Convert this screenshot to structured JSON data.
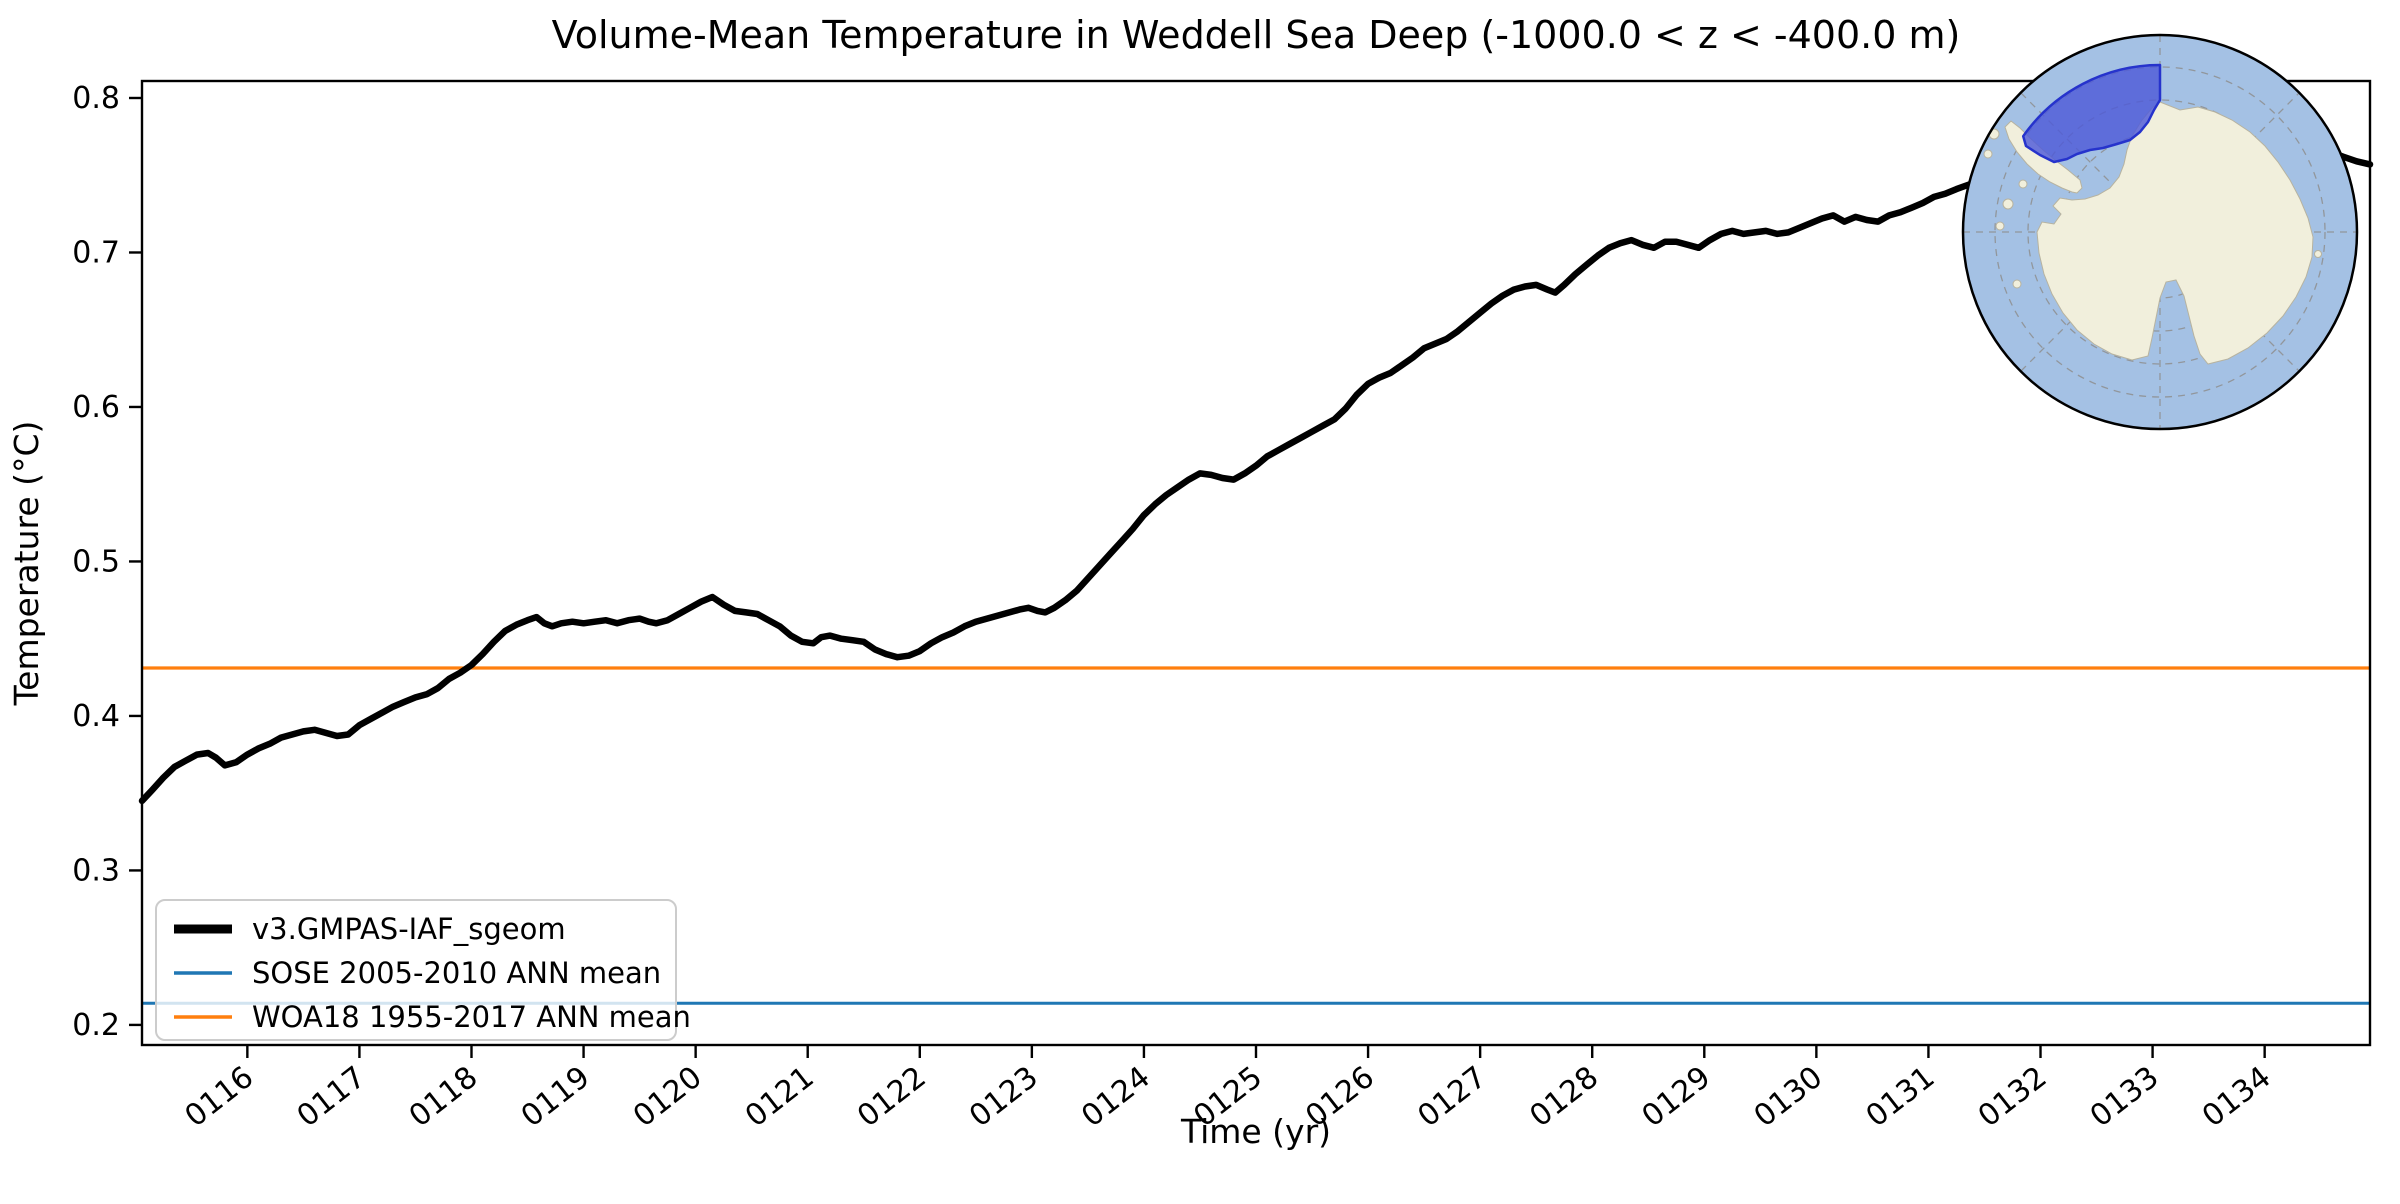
{
  "title": "Volume-Mean Temperature in Weddell Sea Deep (-1000.0 < z < -400.0 m)",
  "axes": {
    "xlabel": "Time (yr)",
    "ylabel": "Temperature (°C)"
  },
  "legend": {
    "items": [
      {
        "label": "v3.GMPAS-IAF_sgeom",
        "color": "#000000",
        "line_width": 9
      },
      {
        "label": "SOSE 2005-2010 ANN mean",
        "color": "#1f77b4",
        "line_width": 3.5
      },
      {
        "label": "WOA18 1955-2017 ANN mean",
        "color": "#ff7f0e",
        "line_width": 3.5
      }
    ]
  },
  "inset_map": {
    "description": "south-polar-stereographic-antarctica-inset",
    "highlight_region": "Weddell Sea sector",
    "ocean_color": "#a4c1e4",
    "land_color": "#f1efdc",
    "highlight_fill": "#4e5ad8",
    "highlight_edge": "#2633cc",
    "graticule_color": "#8f8f8f"
  },
  "chart_data": {
    "type": "line",
    "title": "Volume-Mean Temperature in Weddell Sea Deep (-1000.0 < z < -400.0 m)",
    "xlabel": "Time (yr)",
    "ylabel": "Temperature (°C)",
    "xlim": [
      115.06,
      134.94
    ],
    "ylim": [
      0.187,
      0.811
    ],
    "grid": false,
    "legend_position": "lower left",
    "x_ticks": [
      {
        "value": 116,
        "label": "0116"
      },
      {
        "value": 117,
        "label": "0117"
      },
      {
        "value": 118,
        "label": "0118"
      },
      {
        "value": 119,
        "label": "0119"
      },
      {
        "value": 120,
        "label": "0120"
      },
      {
        "value": 121,
        "label": "0121"
      },
      {
        "value": 122,
        "label": "0122"
      },
      {
        "value": 123,
        "label": "0123"
      },
      {
        "value": 124,
        "label": "0124"
      },
      {
        "value": 125,
        "label": "0125"
      },
      {
        "value": 126,
        "label": "0126"
      },
      {
        "value": 127,
        "label": "0127"
      },
      {
        "value": 128,
        "label": "0128"
      },
      {
        "value": 129,
        "label": "0129"
      },
      {
        "value": 130,
        "label": "0130"
      },
      {
        "value": 131,
        "label": "0131"
      },
      {
        "value": 132,
        "label": "0132"
      },
      {
        "value": 133,
        "label": "0133"
      },
      {
        "value": 134,
        "label": "0134"
      }
    ],
    "y_ticks": [
      {
        "value": 0.2,
        "label": "0.2"
      },
      {
        "value": 0.3,
        "label": "0.3"
      },
      {
        "value": 0.4,
        "label": "0.4"
      },
      {
        "value": 0.5,
        "label": "0.5"
      },
      {
        "value": 0.6,
        "label": "0.6"
      },
      {
        "value": 0.7,
        "label": "0.7"
      },
      {
        "value": 0.8,
        "label": "0.8"
      }
    ],
    "reference_lines": [
      {
        "name": "SOSE 2005-2010 ANN mean",
        "value": 0.214,
        "color": "#1f77b4",
        "width": 3
      },
      {
        "name": "WOA18 1955-2017 ANN mean",
        "value": 0.431,
        "color": "#ff7f0e",
        "width": 3.25
      }
    ],
    "series": [
      {
        "name": "v3.GMPAS-IAF_sgeom",
        "color": "#000000",
        "width": 6.5,
        "points": [
          [
            115.06,
            0.345
          ],
          [
            115.15,
            0.352
          ],
          [
            115.25,
            0.36
          ],
          [
            115.35,
            0.367
          ],
          [
            115.45,
            0.371
          ],
          [
            115.55,
            0.375
          ],
          [
            115.65,
            0.376
          ],
          [
            115.72,
            0.373
          ],
          [
            115.8,
            0.368
          ],
          [
            115.9,
            0.37
          ],
          [
            116.0,
            0.375
          ],
          [
            116.1,
            0.379
          ],
          [
            116.2,
            0.382
          ],
          [
            116.3,
            0.386
          ],
          [
            116.4,
            0.388
          ],
          [
            116.5,
            0.39
          ],
          [
            116.6,
            0.391
          ],
          [
            116.7,
            0.389
          ],
          [
            116.8,
            0.387
          ],
          [
            116.9,
            0.388
          ],
          [
            117.0,
            0.394
          ],
          [
            117.1,
            0.398
          ],
          [
            117.2,
            0.402
          ],
          [
            117.3,
            0.406
          ],
          [
            117.4,
            0.409
          ],
          [
            117.5,
            0.412
          ],
          [
            117.6,
            0.414
          ],
          [
            117.7,
            0.418
          ],
          [
            117.8,
            0.424
          ],
          [
            117.9,
            0.428
          ],
          [
            118.0,
            0.433
          ],
          [
            118.1,
            0.44
          ],
          [
            118.2,
            0.448
          ],
          [
            118.3,
            0.455
          ],
          [
            118.4,
            0.459
          ],
          [
            118.5,
            0.462
          ],
          [
            118.58,
            0.464
          ],
          [
            118.65,
            0.46
          ],
          [
            118.72,
            0.458
          ],
          [
            118.8,
            0.46
          ],
          [
            118.9,
            0.461
          ],
          [
            119.0,
            0.46
          ],
          [
            119.1,
            0.461
          ],
          [
            119.2,
            0.462
          ],
          [
            119.3,
            0.46
          ],
          [
            119.4,
            0.462
          ],
          [
            119.5,
            0.463
          ],
          [
            119.58,
            0.461
          ],
          [
            119.65,
            0.46
          ],
          [
            119.75,
            0.462
          ],
          [
            119.85,
            0.466
          ],
          [
            119.95,
            0.47
          ],
          [
            120.05,
            0.474
          ],
          [
            120.15,
            0.477
          ],
          [
            120.25,
            0.472
          ],
          [
            120.35,
            0.468
          ],
          [
            120.45,
            0.467
          ],
          [
            120.55,
            0.466
          ],
          [
            120.65,
            0.462
          ],
          [
            120.75,
            0.458
          ],
          [
            120.85,
            0.452
          ],
          [
            120.95,
            0.448
          ],
          [
            121.05,
            0.447
          ],
          [
            121.12,
            0.451
          ],
          [
            121.2,
            0.452
          ],
          [
            121.3,
            0.45
          ],
          [
            121.4,
            0.449
          ],
          [
            121.5,
            0.448
          ],
          [
            121.6,
            0.443
          ],
          [
            121.7,
            0.44
          ],
          [
            121.8,
            0.438
          ],
          [
            121.9,
            0.439
          ],
          [
            122.0,
            0.442
          ],
          [
            122.1,
            0.447
          ],
          [
            122.2,
            0.451
          ],
          [
            122.3,
            0.454
          ],
          [
            122.4,
            0.458
          ],
          [
            122.5,
            0.461
          ],
          [
            122.6,
            0.463
          ],
          [
            122.7,
            0.465
          ],
          [
            122.8,
            0.467
          ],
          [
            122.9,
            0.469
          ],
          [
            122.97,
            0.47
          ],
          [
            123.05,
            0.468
          ],
          [
            123.12,
            0.467
          ],
          [
            123.2,
            0.47
          ],
          [
            123.3,
            0.475
          ],
          [
            123.4,
            0.481
          ],
          [
            123.5,
            0.489
          ],
          [
            123.6,
            0.497
          ],
          [
            123.7,
            0.505
          ],
          [
            123.8,
            0.513
          ],
          [
            123.9,
            0.521
          ],
          [
            124.0,
            0.53
          ],
          [
            124.1,
            0.537
          ],
          [
            124.2,
            0.543
          ],
          [
            124.3,
            0.548
          ],
          [
            124.4,
            0.553
          ],
          [
            124.5,
            0.557
          ],
          [
            124.6,
            0.556
          ],
          [
            124.7,
            0.554
          ],
          [
            124.8,
            0.553
          ],
          [
            124.9,
            0.557
          ],
          [
            125.0,
            0.562
          ],
          [
            125.1,
            0.568
          ],
          [
            125.2,
            0.572
          ],
          [
            125.3,
            0.576
          ],
          [
            125.4,
            0.58
          ],
          [
            125.5,
            0.584
          ],
          [
            125.6,
            0.588
          ],
          [
            125.7,
            0.592
          ],
          [
            125.8,
            0.599
          ],
          [
            125.9,
            0.608
          ],
          [
            126.0,
            0.615
          ],
          [
            126.1,
            0.619
          ],
          [
            126.2,
            0.622
          ],
          [
            126.3,
            0.627
          ],
          [
            126.4,
            0.632
          ],
          [
            126.5,
            0.638
          ],
          [
            126.6,
            0.641
          ],
          [
            126.7,
            0.644
          ],
          [
            126.8,
            0.649
          ],
          [
            126.9,
            0.655
          ],
          [
            127.0,
            0.661
          ],
          [
            127.1,
            0.667
          ],
          [
            127.2,
            0.672
          ],
          [
            127.3,
            0.676
          ],
          [
            127.4,
            0.678
          ],
          [
            127.5,
            0.679
          ],
          [
            127.6,
            0.676
          ],
          [
            127.67,
            0.674
          ],
          [
            127.75,
            0.679
          ],
          [
            127.85,
            0.686
          ],
          [
            127.95,
            0.692
          ],
          [
            128.05,
            0.698
          ],
          [
            128.15,
            0.703
          ],
          [
            128.25,
            0.706
          ],
          [
            128.35,
            0.708
          ],
          [
            128.45,
            0.705
          ],
          [
            128.55,
            0.703
          ],
          [
            128.65,
            0.707
          ],
          [
            128.75,
            0.707
          ],
          [
            128.85,
            0.705
          ],
          [
            128.95,
            0.703
          ],
          [
            129.05,
            0.708
          ],
          [
            129.15,
            0.712
          ],
          [
            129.25,
            0.714
          ],
          [
            129.35,
            0.712
          ],
          [
            129.45,
            0.713
          ],
          [
            129.55,
            0.714
          ],
          [
            129.65,
            0.712
          ],
          [
            129.75,
            0.713
          ],
          [
            129.85,
            0.716
          ],
          [
            129.95,
            0.719
          ],
          [
            130.05,
            0.722
          ],
          [
            130.15,
            0.724
          ],
          [
            130.25,
            0.72
          ],
          [
            130.35,
            0.723
          ],
          [
            130.45,
            0.721
          ],
          [
            130.55,
            0.72
          ],
          [
            130.65,
            0.724
          ],
          [
            130.75,
            0.726
          ],
          [
            130.85,
            0.729
          ],
          [
            130.95,
            0.732
          ],
          [
            131.05,
            0.736
          ],
          [
            131.15,
            0.738
          ],
          [
            131.25,
            0.741
          ],
          [
            131.4,
            0.745
          ],
          [
            131.55,
            0.748
          ],
          [
            131.7,
            0.751
          ],
          [
            131.85,
            0.754
          ],
          [
            132.0,
            0.757
          ],
          [
            132.2,
            0.76
          ],
          [
            132.4,
            0.763
          ],
          [
            132.6,
            0.766
          ],
          [
            132.8,
            0.768
          ],
          [
            133.0,
            0.77
          ],
          [
            133.2,
            0.772
          ],
          [
            133.4,
            0.774
          ],
          [
            133.6,
            0.775
          ],
          [
            133.8,
            0.774
          ],
          [
            134.0,
            0.772
          ],
          [
            134.2,
            0.77
          ],
          [
            134.4,
            0.768
          ],
          [
            134.55,
            0.766
          ],
          [
            134.7,
            0.762
          ],
          [
            134.82,
            0.759
          ],
          [
            134.94,
            0.757
          ]
        ]
      }
    ]
  }
}
